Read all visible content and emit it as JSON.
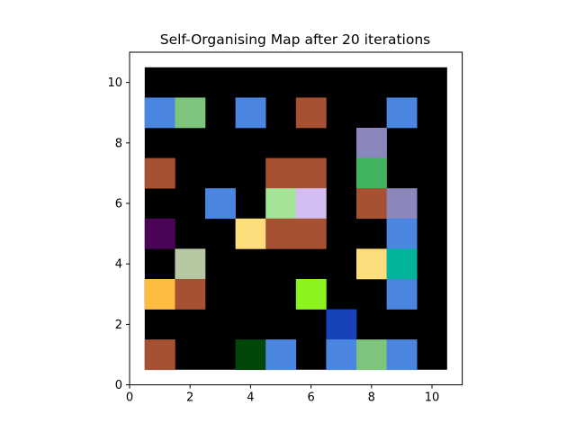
{
  "chart_data": {
    "type": "heatmap",
    "title": "Self-Organising Map after 20 iterations",
    "xlabel": "",
    "ylabel": "",
    "xlim": [
      0,
      11
    ],
    "ylim": [
      0,
      11
    ],
    "xticks": [
      0,
      2,
      4,
      6,
      8,
      10
    ],
    "yticks": [
      0,
      2,
      4,
      6,
      8,
      10
    ],
    "grid": false,
    "background_cell_color": "#000000",
    "grid_x_range": [
      1,
      10
    ],
    "grid_y_range": [
      1,
      10
    ],
    "cells": [
      {
        "x": 1,
        "y": 9,
        "color": "#4a86e0"
      },
      {
        "x": 2,
        "y": 9,
        "color": "#7fc47d"
      },
      {
        "x": 4,
        "y": 9,
        "color": "#4a86e0"
      },
      {
        "x": 6,
        "y": 9,
        "color": "#a55132"
      },
      {
        "x": 9,
        "y": 9,
        "color": "#4a86e0"
      },
      {
        "x": 8,
        "y": 8,
        "color": "#8a87bd"
      },
      {
        "x": 1,
        "y": 7,
        "color": "#a55132"
      },
      {
        "x": 5,
        "y": 7,
        "color": "#a55132"
      },
      {
        "x": 6,
        "y": 7,
        "color": "#a55132"
      },
      {
        "x": 8,
        "y": 7,
        "color": "#41b35e"
      },
      {
        "x": 3,
        "y": 6,
        "color": "#4a86e0"
      },
      {
        "x": 5,
        "y": 6,
        "color": "#a3e498"
      },
      {
        "x": 6,
        "y": 6,
        "color": "#d4bdf2"
      },
      {
        "x": 8,
        "y": 6,
        "color": "#a55132"
      },
      {
        "x": 9,
        "y": 6,
        "color": "#8a87bd"
      },
      {
        "x": 1,
        "y": 5,
        "color": "#4a0556"
      },
      {
        "x": 4,
        "y": 5,
        "color": "#fedd7c"
      },
      {
        "x": 5,
        "y": 5,
        "color": "#a55132"
      },
      {
        "x": 6,
        "y": 5,
        "color": "#a55132"
      },
      {
        "x": 9,
        "y": 5,
        "color": "#4a86e0"
      },
      {
        "x": 2,
        "y": 4,
        "color": "#b5c8a2"
      },
      {
        "x": 8,
        "y": 4,
        "color": "#fedd7c"
      },
      {
        "x": 9,
        "y": 4,
        "color": "#02b49c"
      },
      {
        "x": 1,
        "y": 3,
        "color": "#fcbd40"
      },
      {
        "x": 2,
        "y": 3,
        "color": "#a55132"
      },
      {
        "x": 6,
        "y": 3,
        "color": "#8cf31c"
      },
      {
        "x": 9,
        "y": 3,
        "color": "#4a86e0"
      },
      {
        "x": 7,
        "y": 2,
        "color": "#1843b8"
      },
      {
        "x": 1,
        "y": 1,
        "color": "#a55132"
      },
      {
        "x": 4,
        "y": 1,
        "color": "#03460a"
      },
      {
        "x": 5,
        "y": 1,
        "color": "#4a86e0"
      },
      {
        "x": 7,
        "y": 1,
        "color": "#4a86e0"
      },
      {
        "x": 8,
        "y": 1,
        "color": "#7fc47d"
      },
      {
        "x": 9,
        "y": 1,
        "color": "#4a86e0"
      }
    ]
  }
}
